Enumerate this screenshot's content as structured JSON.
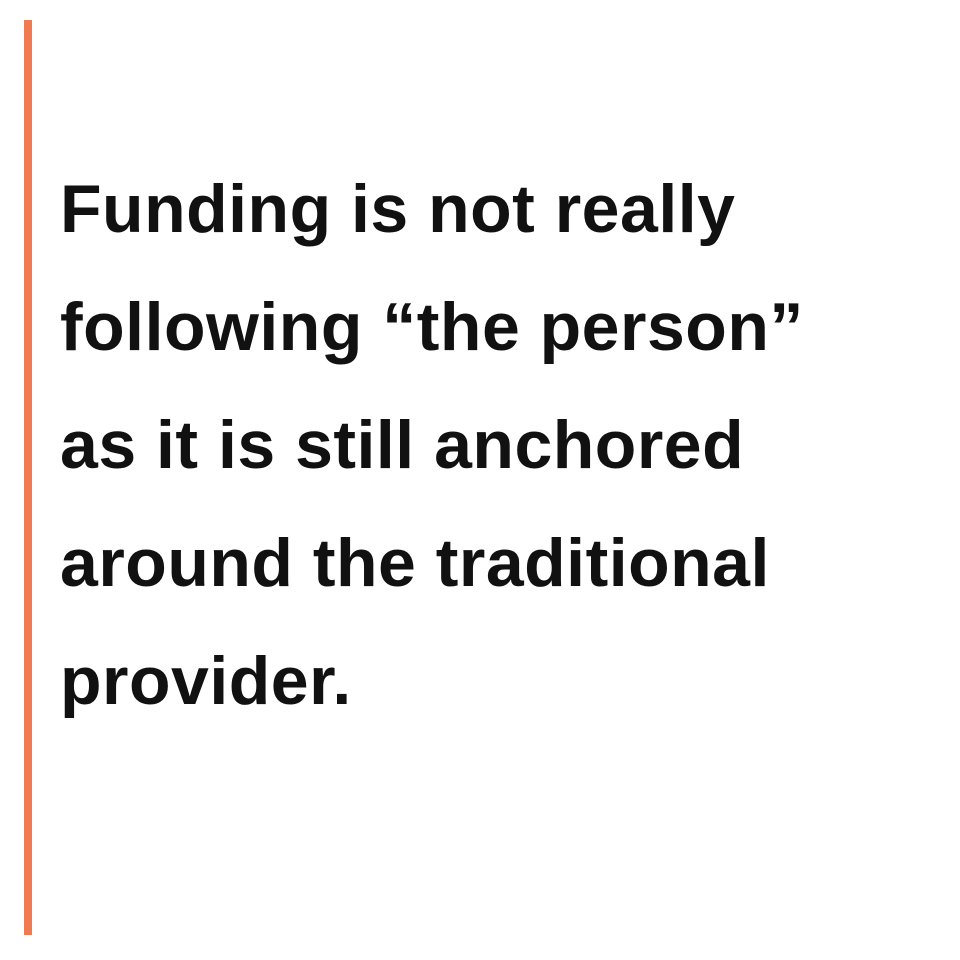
{
  "colors": {
    "accent_bar": "#f07b52",
    "text": "#111111",
    "background": "#ffffff"
  },
  "quote": {
    "lines": [
      "Funding is not really",
      "following “the person”",
      "as it is still anchored",
      "around the traditional",
      "provider."
    ]
  }
}
